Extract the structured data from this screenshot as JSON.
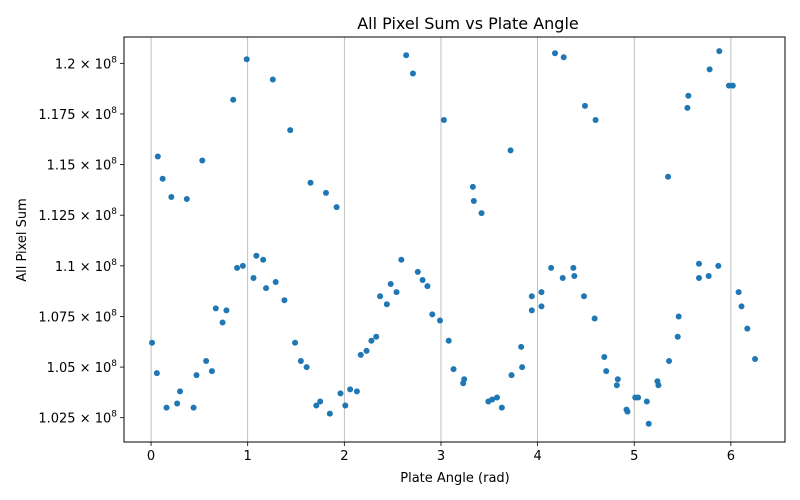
{
  "chart_data": {
    "type": "scatter",
    "title": "All Pixel Sum vs Plate Angle",
    "xlabel": "Plate Angle (rad)",
    "ylabel": "All Pixel Sum",
    "xlim": [
      -0.28,
      6.56
    ],
    "ylim": [
      101300000,
      121300000
    ],
    "x_ticks": [
      0,
      1,
      2,
      3,
      4,
      5,
      6
    ],
    "x_tick_labels": [
      "0",
      "1",
      "2",
      "3",
      "4",
      "5",
      "6"
    ],
    "y_ticks": [
      102500000,
      105000000,
      107500000,
      110000000,
      112500000,
      115000000,
      117500000,
      120000000
    ],
    "y_tick_labels": [
      {
        "mantissa": "1.025",
        "base": "10",
        "exp": "8"
      },
      {
        "mantissa": "1.05",
        "base": "10",
        "exp": "8"
      },
      {
        "mantissa": "1.075",
        "base": "10",
        "exp": "8"
      },
      {
        "mantissa": "1.1",
        "base": "10",
        "exp": "8"
      },
      {
        "mantissa": "1.125",
        "base": "10",
        "exp": "8"
      },
      {
        "mantissa": "1.15",
        "base": "10",
        "exp": "8"
      },
      {
        "mantissa": "1.175",
        "base": "10",
        "exp": "8"
      },
      {
        "mantissa": "1.2",
        "base": "10",
        "exp": "8"
      }
    ],
    "grid": "x-major",
    "marker_color": "#1f77b4",
    "series": [
      {
        "points": [
          [
            0.01,
            106200000
          ],
          [
            0.06,
            104700000
          ],
          [
            0.07,
            115400000
          ],
          [
            0.12,
            114300000
          ],
          [
            0.16,
            103000000
          ],
          [
            0.21,
            113400000
          ],
          [
            0.27,
            103200000
          ],
          [
            0.3,
            103800000
          ],
          [
            0.37,
            113300000
          ],
          [
            0.44,
            103000000
          ],
          [
            0.47,
            104600000
          ],
          [
            0.53,
            115200000
          ],
          [
            0.57,
            105300000
          ],
          [
            0.63,
            104800000
          ],
          [
            0.67,
            107900000
          ],
          [
            0.74,
            107200000
          ],
          [
            0.78,
            107800000
          ],
          [
            0.85,
            118200000
          ],
          [
            0.89,
            109900000
          ],
          [
            0.95,
            110000000
          ],
          [
            0.99,
            120200000
          ],
          [
            1.06,
            109400000
          ],
          [
            1.09,
            110500000
          ],
          [
            1.16,
            110300000
          ],
          [
            1.19,
            108900000
          ],
          [
            1.26,
            119200000
          ],
          [
            1.29,
            109200000
          ],
          [
            1.38,
            108300000
          ],
          [
            1.44,
            116700000
          ],
          [
            1.49,
            106200000
          ],
          [
            1.55,
            105300000
          ],
          [
            1.61,
            105000000
          ],
          [
            1.65,
            114100000
          ],
          [
            1.71,
            103100000
          ],
          [
            1.75,
            103300000
          ],
          [
            1.81,
            113600000
          ],
          [
            1.85,
            102700000
          ],
          [
            1.92,
            112900000
          ],
          [
            1.96,
            103700000
          ],
          [
            2.01,
            103100000
          ],
          [
            2.06,
            103900000
          ],
          [
            2.13,
            103800000
          ],
          [
            2.17,
            105600000
          ],
          [
            2.23,
            105800000
          ],
          [
            2.28,
            106300000
          ],
          [
            2.33,
            106500000
          ],
          [
            2.37,
            108500000
          ],
          [
            2.44,
            108100000
          ],
          [
            2.48,
            109100000
          ],
          [
            2.54,
            108700000
          ],
          [
            2.59,
            110300000
          ],
          [
            2.64,
            120400000
          ],
          [
            2.71,
            119500000
          ],
          [
            2.76,
            109700000
          ],
          [
            2.81,
            109300000
          ],
          [
            2.86,
            109000000
          ],
          [
            2.91,
            107600000
          ],
          [
            2.99,
            107300000
          ],
          [
            3.03,
            117200000
          ],
          [
            3.08,
            106300000
          ],
          [
            3.13,
            104900000
          ],
          [
            3.23,
            104200000
          ],
          [
            3.24,
            104400000
          ],
          [
            3.33,
            113900000
          ],
          [
            3.34,
            113200000
          ],
          [
            3.42,
            112600000
          ],
          [
            3.49,
            103300000
          ],
          [
            3.53,
            103400000
          ],
          [
            3.58,
            103500000
          ],
          [
            3.63,
            103000000
          ],
          [
            3.72,
            115700000
          ],
          [
            3.73,
            104600000
          ],
          [
            3.83,
            106000000
          ],
          [
            3.84,
            105000000
          ],
          [
            3.94,
            107800000
          ],
          [
            3.94,
            108500000
          ],
          [
            4.04,
            108700000
          ],
          [
            4.04,
            108000000
          ],
          [
            4.14,
            109900000
          ],
          [
            4.18,
            120500000
          ],
          [
            4.26,
            109400000
          ],
          [
            4.27,
            120300000
          ],
          [
            4.37,
            109900000
          ],
          [
            4.38,
            109500000
          ],
          [
            4.48,
            108500000
          ],
          [
            4.49,
            117900000
          ],
          [
            4.59,
            107400000
          ],
          [
            4.6,
            117200000
          ],
          [
            4.69,
            105500000
          ],
          [
            4.71,
            104800000
          ],
          [
            4.82,
            104100000
          ],
          [
            4.83,
            104400000
          ],
          [
            4.92,
            102900000
          ],
          [
            4.93,
            102800000
          ],
          [
            5.01,
            103500000
          ],
          [
            5.04,
            103500000
          ],
          [
            5.13,
            103300000
          ],
          [
            5.15,
            102200000
          ],
          [
            5.24,
            104300000
          ],
          [
            5.25,
            104100000
          ],
          [
            5.35,
            114400000
          ],
          [
            5.36,
            105300000
          ],
          [
            5.45,
            106500000
          ],
          [
            5.46,
            107500000
          ],
          [
            5.55,
            117800000
          ],
          [
            5.56,
            118400000
          ],
          [
            5.67,
            110100000
          ],
          [
            5.67,
            109400000
          ],
          [
            5.77,
            109500000
          ],
          [
            5.78,
            119700000
          ],
          [
            5.87,
            110000000
          ],
          [
            5.88,
            120600000
          ],
          [
            5.98,
            118900000
          ],
          [
            6.02,
            118900000
          ],
          [
            6.08,
            108700000
          ],
          [
            6.11,
            108000000
          ],
          [
            6.17,
            106900000
          ],
          [
            6.25,
            105400000
          ]
        ]
      }
    ]
  }
}
